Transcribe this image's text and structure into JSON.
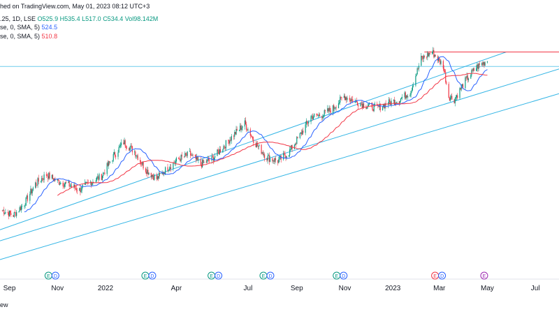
{
  "header": {
    "published": "hed on TradingView.com, May 01, 2023 08:12 UTC+3",
    "ohlc_prefix": ".25, 1D, LSE",
    "open": "O525.9",
    "high": "H535.4",
    "low": "L517.0",
    "close": "C534.4",
    "volume": "Vol98.142M",
    "sma1_label": "se, 0, SMA, 5)",
    "sma1_value": "524.5",
    "sma2_label": "se, 0, SMA, 5)",
    "sma2_value": "510.8"
  },
  "footer_text": "ew",
  "colors": {
    "up": "#089981",
    "down": "#f23645",
    "sma_fast": "#2962ff",
    "sma_slow": "#f23645",
    "channel": "#33b5e5",
    "resistance": "#f23645",
    "grid": "#e0e3eb",
    "earnings_blue": "#2962ff",
    "earnings_green": "#089981",
    "earnings_red": "#f23645",
    "earnings_purple": "#9c27b0"
  },
  "chart_data": {
    "type": "candlestick",
    "x_axis": {
      "ticks": [
        "Sep",
        "Nov",
        "2022",
        "Apr",
        "Jul",
        "Sep",
        "Nov",
        "2023",
        "Mar",
        "May",
        "Jul"
      ],
      "range": [
        "2021-08-20",
        "2023-07-31"
      ]
    },
    "y_axis": {
      "range": [
        300,
        560
      ],
      "ticks_visible": false
    },
    "grid": false,
    "series": [
      {
        "kind": "ohlc_approx",
        "points": [
          [
            "2021-08-23",
            358
          ],
          [
            "2021-09-06",
            352
          ],
          [
            "2021-09-20",
            366
          ],
          [
            "2021-10-04",
            389
          ],
          [
            "2021-10-18",
            400
          ],
          [
            "2021-11-01",
            392
          ],
          [
            "2021-11-15",
            388
          ],
          [
            "2021-11-29",
            382
          ],
          [
            "2021-12-13",
            391
          ],
          [
            "2021-12-27",
            398
          ],
          [
            "2022-01-10",
            420
          ],
          [
            "2022-01-24",
            438
          ],
          [
            "2022-02-07",
            427
          ],
          [
            "2022-02-21",
            406
          ],
          [
            "2022-03-07",
            395
          ],
          [
            "2022-03-21",
            408
          ],
          [
            "2022-04-04",
            418
          ],
          [
            "2022-04-18",
            424
          ],
          [
            "2022-05-02",
            412
          ],
          [
            "2022-05-16",
            418
          ],
          [
            "2022-05-30",
            432
          ],
          [
            "2022-06-13",
            447
          ],
          [
            "2022-06-27",
            460
          ],
          [
            "2022-07-11",
            436
          ],
          [
            "2022-07-25",
            420
          ],
          [
            "2022-08-08",
            416
          ],
          [
            "2022-08-22",
            426
          ],
          [
            "2022-09-05",
            446
          ],
          [
            "2022-09-19",
            468
          ],
          [
            "2022-10-03",
            470
          ],
          [
            "2022-10-17",
            478
          ],
          [
            "2022-10-31",
            492
          ],
          [
            "2022-11-14",
            486
          ],
          [
            "2022-11-28",
            481
          ],
          [
            "2022-12-12",
            478
          ],
          [
            "2022-12-26",
            484
          ],
          [
            "2023-01-09",
            488
          ],
          [
            "2023-01-23",
            497
          ],
          [
            "2023-02-06",
            536
          ],
          [
            "2023-02-20",
            544
          ],
          [
            "2023-03-06",
            528
          ],
          [
            "2023-03-13",
            492
          ],
          [
            "2023-03-20",
            488
          ],
          [
            "2023-04-03",
            510
          ],
          [
            "2023-04-17",
            526
          ],
          [
            "2023-05-01",
            534
          ]
        ]
      },
      {
        "name": "SMA fast",
        "value_last": 524.5
      },
      {
        "name": "SMA slow",
        "value_last": 510.8
      }
    ],
    "channel_lines": [
      {
        "from": [
          "2021-08-20",
          335
        ],
        "to": [
          "2023-05-25",
          544
        ]
      },
      {
        "from": [
          "2021-08-20",
          322
        ],
        "to": [
          "2023-07-31",
          524
        ]
      },
      {
        "from": [
          "2021-08-20",
          300
        ],
        "to": [
          "2023-07-31",
          495
        ]
      }
    ],
    "resistance": {
      "from": "2023-02-10",
      "to": "2023-07-31",
      "value": 544
    },
    "horizontal_level": 527,
    "earnings_markers": [
      {
        "date": "2021-10-25",
        "letters": [
          "E",
          "D"
        ],
        "colors": [
          "green",
          "blue"
        ]
      },
      {
        "date": "2022-02-25",
        "letters": [
          "E",
          "D"
        ],
        "colors": [
          "green",
          "blue"
        ]
      },
      {
        "date": "2022-05-20",
        "letters": [
          "E",
          "D"
        ],
        "colors": [
          "green",
          "blue"
        ]
      },
      {
        "date": "2022-07-25",
        "letters": [
          "E",
          "D"
        ],
        "colors": [
          "green",
          "blue"
        ]
      },
      {
        "date": "2022-10-26",
        "letters": [
          "E",
          "D"
        ],
        "colors": [
          "green",
          "blue"
        ]
      },
      {
        "date": "2023-02-28",
        "letters": [
          "E",
          "D"
        ],
        "colors": [
          "red",
          "blue"
        ]
      },
      {
        "date": "2023-04-27",
        "letters": [
          "E"
        ],
        "colors": [
          "purple"
        ]
      }
    ]
  }
}
